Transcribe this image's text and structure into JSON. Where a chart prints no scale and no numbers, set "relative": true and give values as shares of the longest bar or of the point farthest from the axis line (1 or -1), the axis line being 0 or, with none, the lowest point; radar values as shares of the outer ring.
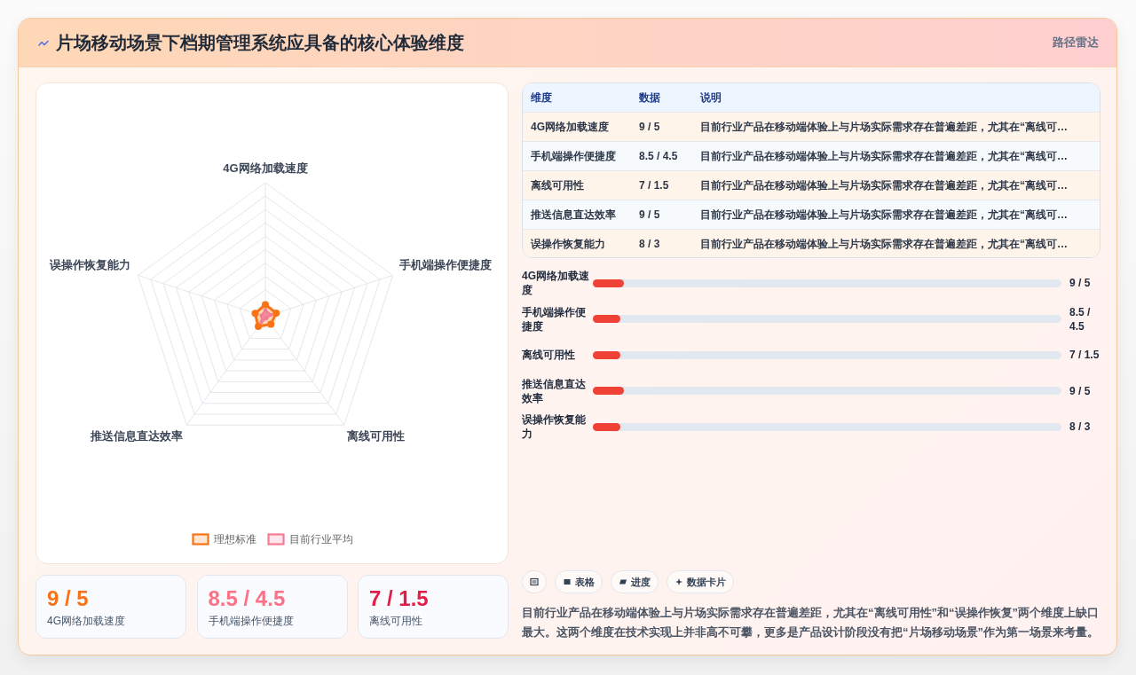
{
  "chart_data": [
    {
      "type": "other",
      "title": "片场移动场景下档期管理系统应具备的核心体验维度",
      "subtitle": "路径雷达"
    },
    {
      "type": "radar",
      "categories": [
        "4G网络加载速度",
        "手机端操作便捷度",
        "离线可用性",
        "推送信息直达效率",
        "误操作恢复能力"
      ],
      "relative": true,
      "series": [
        {
          "name": "理想标准",
          "color": "#f97316",
          "values": [
            0.09,
            0.085,
            0.07,
            0.09,
            0.08
          ]
        },
        {
          "name": "目前行业平均",
          "color": "#f47c94",
          "values": [
            0.05,
            0.045,
            0.015,
            0.05,
            0.03
          ]
        }
      ],
      "grid": true,
      "legend": "bottom",
      "marker": "circle"
    },
    {
      "type": "other",
      "annotations": [
        "维度",
        "数据",
        "说明",
        "4G网络加载速度",
        "9 / 5",
        "目前行业产品在移动端体验上与片场实际需求存在普遍差距，尤其在“离线可…",
        "手机端操作便捷度",
        "8.5 / 4.5",
        "目前行业产品在移动端体验上与片场实际需求存在普遍差距，尤其在“离线可…",
        "离线可用性",
        "7 / 1.5",
        "目前行业产品在移动端体验上与片场实际需求存在普遍差距，尤其在“离线可…",
        "推送信息直达效率",
        "9 / 5",
        "目前行业产品在移动端体验上与片场实际需求存在普遍差距，尤其在“离线可…",
        "误操作恢复能力",
        "8 / 3",
        "目前行业产品在移动端体验上与片场实际需求存在普遍差距，尤其在“离线可…"
      ]
    },
    {
      "type": "bar",
      "orientation": "horizontal",
      "relative": true,
      "categories": [
        "4G网络加载速度",
        "手机端操作便捷度",
        "离线可用性",
        "推送信息直达效率",
        "误操作恢复能力"
      ],
      "values": [
        1,
        0.88,
        0.88,
        1,
        0.88
      ],
      "annotations": [
        "9 / 5",
        "8.5 / 4.5",
        "7 / 1.5",
        "9 / 5",
        "8 / 3"
      ],
      "color": "#ef4136"
    },
    {
      "type": "other",
      "annotations": [
        "9 / 5",
        "4G网络加载速度",
        "8.5 / 4.5",
        "手机端操作便捷度",
        "7 / 1.5",
        "离线可用性"
      ],
      "colors": [
        "#f97316",
        "#fb7185",
        "#e11d48"
      ]
    },
    {
      "type": "other",
      "categories": [
        null,
        "表格",
        "进度",
        "数据卡片"
      ],
      "annotations": [
        "目前行业产品在移动端体验上与片场实际需求存在普遍差距，尤其在“离线可用性”和“误操作恢复”两个维度上缺口最大。这两个维度在技术实现上并非高不可攀，更多是产品设计阶段没有把“片场移动场景”作为第一场景来考量。"
      ]
    }
  ]
}
